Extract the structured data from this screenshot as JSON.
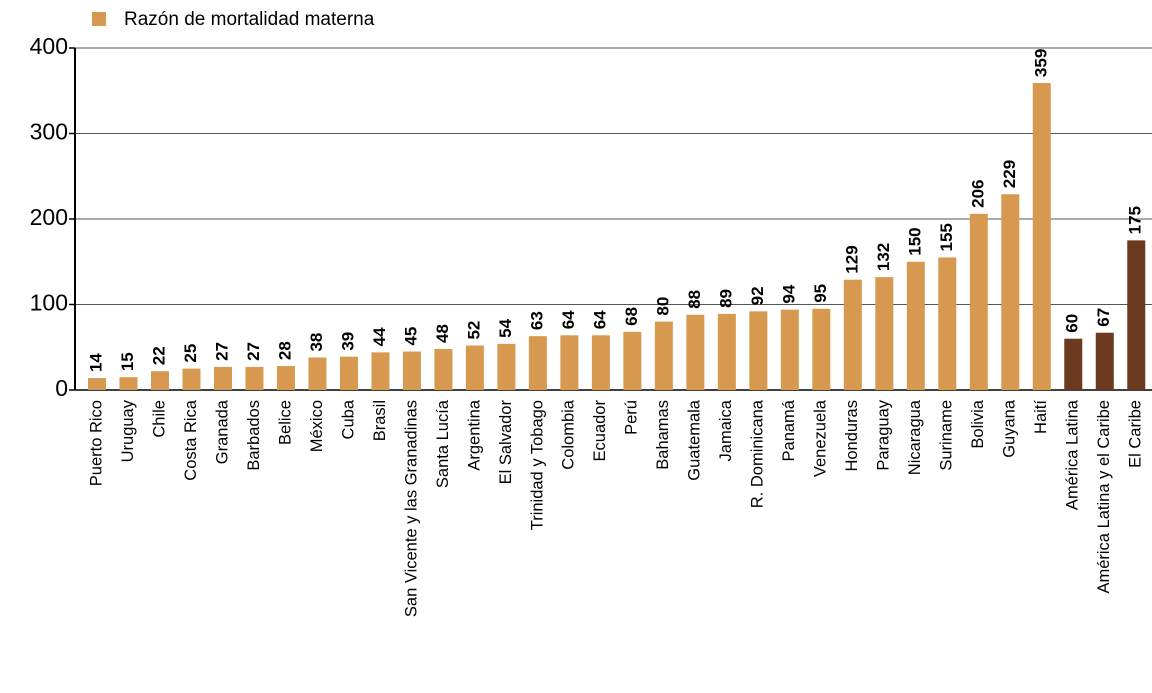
{
  "chart_data": {
    "type": "bar",
    "categories": [
      "Puerto Rico",
      "Uruguay",
      "Chile",
      "Costa Rica",
      "Granada",
      "Barbados",
      "Belice",
      "México",
      "Cuba",
      "Brasil",
      "San Vicente y las Granadinas",
      "Santa Lucía",
      "Argentina",
      "El Salvador",
      "Trinidad y Tobago",
      "Colombia",
      "Ecuador",
      "Perú",
      "Bahamas",
      "Guatemala",
      "Jamaica",
      "R. Dominicana",
      "Panamá",
      "Venezuela",
      "Honduras",
      "Paraguay",
      "Nicaragua",
      "Suriname",
      "Bolivia",
      "Guyana",
      "Haití",
      "América Latina",
      "América Latina y el Caribe",
      "El Caribe"
    ],
    "series": [
      {
        "name": "Razón de mortalidad materna",
        "color": "#d6994f",
        "values": [
          14,
          15,
          22,
          25,
          27,
          27,
          28,
          38,
          39,
          44,
          45,
          48,
          52,
          54,
          63,
          64,
          64,
          68,
          80,
          88,
          89,
          92,
          94,
          95,
          129,
          132,
          150,
          155,
          206,
          229,
          359,
          60,
          67,
          175
        ],
        "colors": [
          "#d6994f",
          "#d6994f",
          "#d6994f",
          "#d6994f",
          "#d6994f",
          "#d6994f",
          "#d6994f",
          "#d6994f",
          "#d6994f",
          "#d6994f",
          "#d6994f",
          "#d6994f",
          "#d6994f",
          "#d6994f",
          "#d6994f",
          "#d6994f",
          "#d6994f",
          "#d6994f",
          "#d6994f",
          "#d6994f",
          "#d6994f",
          "#d6994f",
          "#d6994f",
          "#d6994f",
          "#d6994f",
          "#d6994f",
          "#d6994f",
          "#d6994f",
          "#d6994f",
          "#d6994f",
          "#d6994f",
          "#6b3a1f",
          "#6b3a1f",
          "#6b3a1f"
        ]
      }
    ],
    "ylim": [
      0,
      400
    ],
    "yticks": [
      0,
      100,
      200,
      300,
      400
    ],
    "grid": true,
    "legend": "top-left"
  }
}
